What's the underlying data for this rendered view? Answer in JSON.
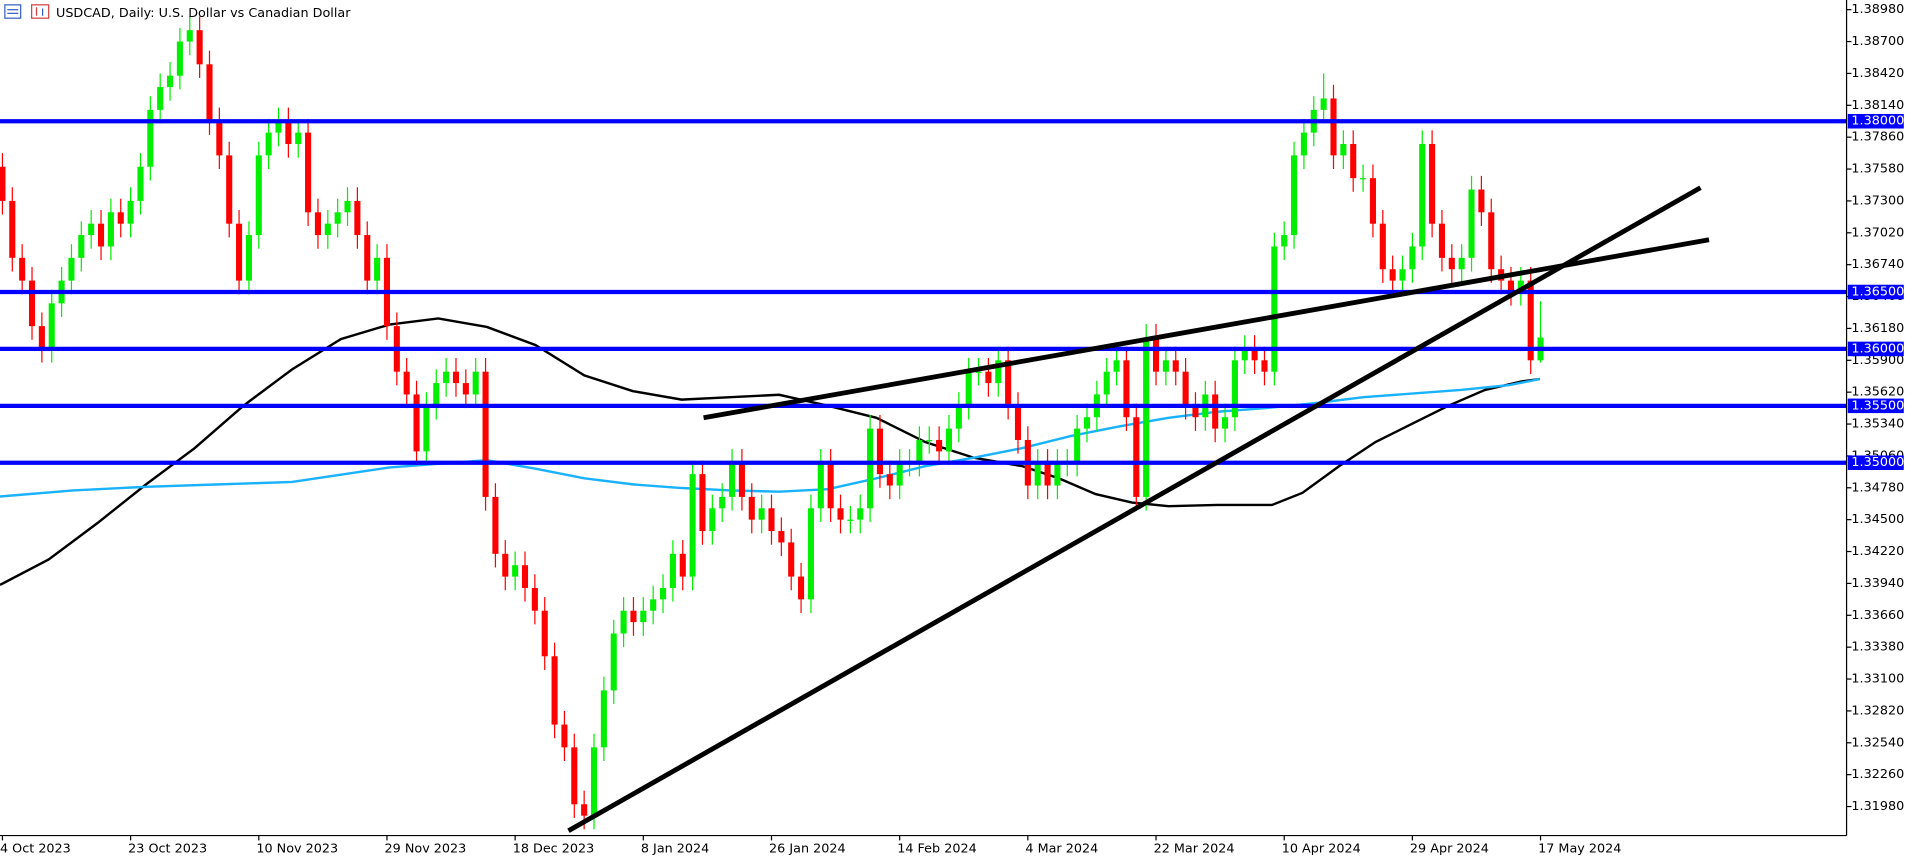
{
  "chart_data": {
    "type": "candlestick",
    "title": "USDCAD, Daily:  U.S. Dollar vs Canadian Dollar",
    "up_color": "#00ee00",
    "down_color": "#ff0000",
    "level_color": "#0000ff",
    "categories": [
      "4 Oct 2023",
      null,
      null,
      null,
      null,
      null,
      null,
      null,
      null,
      null,
      null,
      null,
      null,
      "23 Oct 2023",
      null,
      null,
      null,
      null,
      null,
      null,
      null,
      null,
      null,
      null,
      null,
      null,
      "10 Nov 2023",
      null,
      null,
      null,
      null,
      null,
      null,
      null,
      null,
      null,
      null,
      null,
      null,
      "29 Nov 2023",
      null,
      null,
      null,
      null,
      null,
      null,
      null,
      null,
      null,
      null,
      null,
      null,
      "18 Dec 2023",
      null,
      null,
      null,
      null,
      null,
      null,
      null,
      null,
      null,
      null,
      null,
      null,
      "8 Jan 2024",
      null,
      null,
      null,
      null,
      null,
      null,
      null,
      null,
      null,
      null,
      null,
      null,
      "26 Jan 2024",
      null,
      null,
      null,
      null,
      null,
      null,
      null,
      null,
      null,
      null,
      null,
      null,
      "14 Feb 2024",
      null,
      null,
      null,
      null,
      null,
      null,
      null,
      null,
      null,
      null,
      null,
      null,
      "4 Mar 2024",
      null,
      null,
      null,
      null,
      null,
      null,
      null,
      null,
      null,
      null,
      null,
      null,
      "22 Mar 2024",
      null,
      null,
      null,
      null,
      null,
      null,
      null,
      null,
      null,
      null,
      null,
      null,
      "10 Apr 2024",
      null,
      null,
      null,
      null,
      null,
      null,
      null,
      null,
      null,
      null,
      null,
      null,
      "29 Apr 2024",
      null,
      null,
      null,
      null,
      null,
      null,
      null,
      null,
      null,
      null,
      null,
      null,
      "17 May 2024"
    ],
    "open": [
      1.376,
      1.373,
      1.368,
      1.366,
      1.362,
      1.36,
      1.364,
      1.366,
      1.368,
      1.37,
      1.371,
      1.369,
      1.372,
      1.371,
      1.373,
      1.376,
      1.381,
      1.383,
      1.384,
      1.387,
      1.388,
      1.385,
      1.38,
      1.377,
      1.371,
      1.366,
      1.37,
      1.377,
      1.379,
      1.38,
      1.378,
      1.379,
      1.372,
      1.37,
      1.371,
      1.372,
      1.373,
      1.37,
      1.366,
      1.368,
      1.362,
      1.358,
      1.356,
      1.351,
      1.355,
      1.357,
      1.358,
      1.357,
      1.356,
      1.358,
      1.347,
      1.342,
      1.34,
      1.341,
      1.339,
      1.337,
      1.333,
      1.327,
      1.325,
      1.32,
      1.319,
      1.325,
      1.33,
      1.335,
      1.337,
      1.336,
      1.337,
      1.338,
      1.339,
      1.342,
      1.34,
      1.349,
      1.344,
      1.346,
      1.347,
      1.35,
      1.347,
      1.345,
      1.346,
      1.344,
      1.343,
      1.34,
      1.338,
      1.346,
      1.35,
      1.346,
      1.345,
      1.345,
      1.346,
      1.353,
      1.349,
      1.348,
      1.35,
      1.35,
      1.352,
      1.352,
      1.351,
      1.353,
      1.355,
      1.358,
      1.358,
      1.357,
      1.359,
      1.355,
      1.352,
      1.348,
      1.35,
      1.348,
      1.35,
      1.35,
      1.353,
      1.354,
      1.356,
      1.358,
      1.359,
      1.354,
      1.347,
      1.361,
      1.358,
      1.359,
      1.358,
      1.355,
      1.354,
      1.356,
      1.353,
      1.354,
      1.359,
      1.36,
      1.359,
      1.358,
      1.369,
      1.37,
      1.377,
      1.379,
      1.381,
      1.382,
      1.377,
      1.378,
      1.375,
      1.375,
      1.371,
      1.367,
      1.366,
      1.367,
      1.369,
      1.378,
      1.371,
      1.368,
      1.367,
      1.368,
      1.374,
      1.372,
      1.367,
      1.366,
      1.365,
      1.366,
      1.359
    ],
    "high": [
      1.3772,
      1.3742,
      1.3692,
      1.3672,
      1.3632,
      1.3652,
      1.3672,
      1.3692,
      1.3712,
      1.3722,
      1.3722,
      1.3732,
      1.3732,
      1.3742,
      1.3772,
      1.3822,
      1.3842,
      1.3852,
      1.3882,
      1.3892,
      1.3892,
      1.3862,
      1.3812,
      1.3782,
      1.3722,
      1.3712,
      1.3782,
      1.3802,
      1.3812,
      1.3812,
      1.3802,
      1.3802,
      1.3732,
      1.3722,
      1.3732,
      1.3742,
      1.3742,
      1.3712,
      1.3692,
      1.3692,
      1.3632,
      1.3592,
      1.3572,
      1.3562,
      1.3582,
      1.3592,
      1.3592,
      1.3582,
      1.3592,
      1.3592,
      1.3482,
      1.3432,
      1.3422,
      1.3422,
      1.3402,
      1.3382,
      1.3342,
      1.3282,
      1.3262,
      1.3212,
      1.3262,
      1.3312,
      1.3362,
      1.3382,
      1.3382,
      1.3382,
      1.3392,
      1.3402,
      1.3432,
      1.3432,
      1.3502,
      1.3502,
      1.3472,
      1.3482,
      1.3512,
      1.3512,
      1.3482,
      1.3472,
      1.3472,
      1.3452,
      1.3442,
      1.3412,
      1.3472,
      1.3512,
      1.3512,
      1.3472,
      1.3462,
      1.3472,
      1.3542,
      1.3542,
      1.3502,
      1.3512,
      1.3512,
      1.3532,
      1.3532,
      1.3532,
      1.3542,
      1.3562,
      1.3592,
      1.3592,
      1.3592,
      1.3602,
      1.3602,
      1.3562,
      1.3532,
      1.3512,
      1.3512,
      1.3512,
      1.3512,
      1.3542,
      1.3552,
      1.3572,
      1.3592,
      1.3602,
      1.3602,
      1.3552,
      1.3622,
      1.3622,
      1.3602,
      1.3602,
      1.3592,
      1.3562,
      1.3572,
      1.3572,
      1.3552,
      1.3602,
      1.3612,
      1.3612,
      1.3602,
      1.3702,
      1.3712,
      1.3782,
      1.3802,
      1.3822,
      1.3842,
      1.3832,
      1.3792,
      1.3792,
      1.3762,
      1.3762,
      1.3722,
      1.3682,
      1.3682,
      1.3702,
      1.3792,
      1.3792,
      1.3722,
      1.3692,
      1.3692,
      1.3752,
      1.3752,
      1.3732,
      1.3682,
      1.3672,
      1.3672,
      1.3672,
      1.3642
    ],
    "low": [
      1.3718,
      1.3668,
      1.3648,
      1.3608,
      1.3588,
      1.3588,
      1.3628,
      1.3648,
      1.3668,
      1.3688,
      1.3678,
      1.3678,
      1.3698,
      1.3698,
      1.3718,
      1.3748,
      1.3798,
      1.3818,
      1.3828,
      1.3858,
      1.3838,
      1.3788,
      1.3758,
      1.3698,
      1.3648,
      1.3648,
      1.3688,
      1.3758,
      1.3778,
      1.3768,
      1.3768,
      1.3708,
      1.3688,
      1.3688,
      1.3698,
      1.3708,
      1.3688,
      1.3648,
      1.3648,
      1.3608,
      1.3568,
      1.3548,
      1.3498,
      1.3498,
      1.3538,
      1.3558,
      1.3558,
      1.3548,
      1.3548,
      1.3458,
      1.3408,
      1.3388,
      1.3388,
      1.3378,
      1.3358,
      1.3318,
      1.3258,
      1.3238,
      1.3188,
      1.3178,
      1.3178,
      1.3238,
      1.3288,
      1.3338,
      1.3348,
      1.3348,
      1.3358,
      1.3368,
      1.3378,
      1.3388,
      1.3388,
      1.3428,
      1.3428,
      1.3448,
      1.3458,
      1.3458,
      1.3438,
      1.3438,
      1.3428,
      1.3418,
      1.3388,
      1.3368,
      1.3368,
      1.3448,
      1.3448,
      1.3438,
      1.3438,
      1.3438,
      1.3448,
      1.3478,
      1.3468,
      1.3468,
      1.3488,
      1.3488,
      1.3508,
      1.3498,
      1.3498,
      1.3518,
      1.3538,
      1.3568,
      1.3558,
      1.3558,
      1.3538,
      1.3508,
      1.3468,
      1.3468,
      1.3468,
      1.3468,
      1.3488,
      1.3488,
      1.3518,
      1.3528,
      1.3548,
      1.3568,
      1.3528,
      1.3458,
      1.3458,
      1.3568,
      1.3568,
      1.3568,
      1.3538,
      1.3528,
      1.3528,
      1.3518,
      1.3518,
      1.3528,
      1.3578,
      1.3578,
      1.3568,
      1.3568,
      1.3678,
      1.3688,
      1.3758,
      1.3778,
      1.3798,
      1.3758,
      1.3758,
      1.3738,
      1.3738,
      1.3698,
      1.3658,
      1.3648,
      1.3648,
      1.3658,
      1.3678,
      1.3698,
      1.3668,
      1.3658,
      1.3658,
      1.3668,
      1.3708,
      1.3658,
      1.3648,
      1.3638,
      1.3638,
      1.3578,
      1.3588
    ],
    "close": [
      1.373,
      1.368,
      1.366,
      1.362,
      1.36,
      1.364,
      1.366,
      1.368,
      1.37,
      1.371,
      1.369,
      1.372,
      1.371,
      1.373,
      1.376,
      1.381,
      1.383,
      1.384,
      1.387,
      1.388,
      1.385,
      1.38,
      1.377,
      1.371,
      1.366,
      1.37,
      1.377,
      1.379,
      1.38,
      1.378,
      1.379,
      1.372,
      1.37,
      1.371,
      1.372,
      1.373,
      1.37,
      1.366,
      1.368,
      1.362,
      1.358,
      1.356,
      1.351,
      1.355,
      1.357,
      1.358,
      1.357,
      1.356,
      1.358,
      1.347,
      1.342,
      1.34,
      1.341,
      1.339,
      1.337,
      1.333,
      1.327,
      1.325,
      1.32,
      1.319,
      1.325,
      1.33,
      1.335,
      1.337,
      1.336,
      1.337,
      1.338,
      1.339,
      1.342,
      1.34,
      1.349,
      1.344,
      1.346,
      1.347,
      1.35,
      1.347,
      1.345,
      1.346,
      1.344,
      1.343,
      1.34,
      1.338,
      1.346,
      1.35,
      1.346,
      1.345,
      1.345,
      1.346,
      1.353,
      1.349,
      1.348,
      1.35,
      1.35,
      1.352,
      1.352,
      1.351,
      1.353,
      1.355,
      1.358,
      1.358,
      1.357,
      1.359,
      1.355,
      1.352,
      1.348,
      1.35,
      1.348,
      1.35,
      1.35,
      1.353,
      1.354,
      1.356,
      1.358,
      1.359,
      1.354,
      1.347,
      1.361,
      1.358,
      1.359,
      1.358,
      1.355,
      1.354,
      1.356,
      1.353,
      1.354,
      1.359,
      1.36,
      1.359,
      1.358,
      1.369,
      1.37,
      1.377,
      1.379,
      1.381,
      1.382,
      1.377,
      1.378,
      1.375,
      1.375,
      1.371,
      1.367,
      1.366,
      1.367,
      1.369,
      1.378,
      1.371,
      1.368,
      1.367,
      1.368,
      1.374,
      1.372,
      1.367,
      1.366,
      1.365,
      1.366,
      1.359,
      1.361
    ],
    "ylim": [
      1.31725,
      1.39065
    ],
    "yticks": [
      {
        "value": 1.3898,
        "label": "1.38980"
      },
      {
        "value": 1.387,
        "label": "1.38700"
      },
      {
        "value": 1.3842,
        "label": "1.38420"
      },
      {
        "value": 1.3814,
        "label": "1.38140"
      },
      {
        "value": 1.3786,
        "label": "1.37860"
      },
      {
        "value": 1.3758,
        "label": "1.37580"
      },
      {
        "value": 1.373,
        "label": "1.37300"
      },
      {
        "value": 1.3702,
        "label": "1.37020"
      },
      {
        "value": 1.3674,
        "label": "1.36740"
      },
      {
        "value": 1.3646,
        "label": "1.36460"
      },
      {
        "value": 1.3618,
        "label": "1.36180"
      },
      {
        "value": 1.359,
        "label": "1.35900"
      },
      {
        "value": 1.3562,
        "label": "1.35620"
      },
      {
        "value": 1.3534,
        "label": "1.35340"
      },
      {
        "value": 1.3506,
        "label": "1.35060"
      },
      {
        "value": 1.3478,
        "label": "1.34780"
      },
      {
        "value": 1.345,
        "label": "1.34500"
      },
      {
        "value": 1.3422,
        "label": "1.34220"
      },
      {
        "value": 1.3394,
        "label": "1.33940"
      },
      {
        "value": 1.3366,
        "label": "1.33660"
      },
      {
        "value": 1.3338,
        "label": "1.33380"
      },
      {
        "value": 1.331,
        "label": "1.33100"
      },
      {
        "value": 1.3282,
        "label": "1.32820"
      },
      {
        "value": 1.3254,
        "label": "1.32540"
      },
      {
        "value": 1.3226,
        "label": "1.32260"
      },
      {
        "value": 1.3198,
        "label": "1.31980"
      }
    ],
    "levels": [
      {
        "value": 1.38,
        "label": "1.38000"
      },
      {
        "value": 1.365,
        "label": "1.36500"
      },
      {
        "value": 1.36,
        "label": "1.36000"
      },
      {
        "value": 1.355,
        "label": "1.35500"
      },
      {
        "value": 1.35,
        "label": "1.35000"
      }
    ]
  }
}
